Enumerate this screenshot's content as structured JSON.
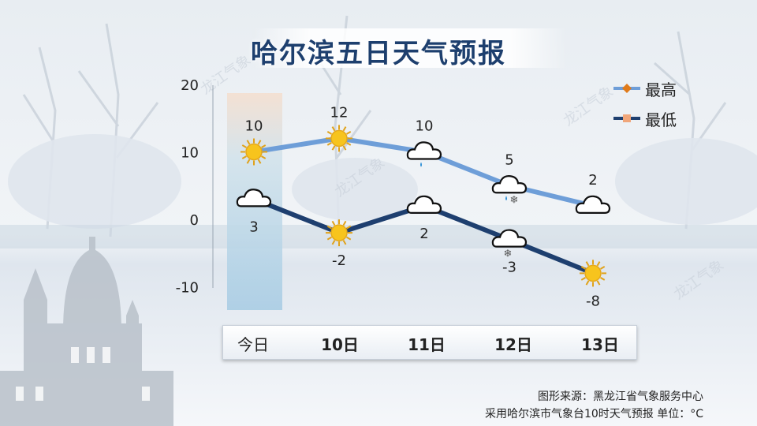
{
  "title": "哈尔滨五日天气预报",
  "chart_data": {
    "type": "line",
    "categories": [
      "今日",
      "10日",
      "11日",
      "12日",
      "13日"
    ],
    "yticks": [
      20,
      10,
      0,
      -10
    ],
    "ylim": [
      -10,
      20
    ],
    "series": [
      {
        "name": "最高",
        "values": [
          10,
          12,
          10,
          5,
          2
        ],
        "color": "#6e9ed8"
      },
      {
        "name": "最低",
        "values": [
          3,
          -2,
          2,
          -3,
          -8
        ],
        "color": "#1e3f6f"
      }
    ],
    "weather_icons": {
      "high": [
        "sun-icon",
        "sun-icon",
        "cloud-rain-icon",
        "cloud-rain-snow-icon",
        "cloud-icon"
      ],
      "low": [
        "cloud-icon",
        "sun-icon",
        "cloud-icon",
        "cloud-snow-icon",
        "sun-icon"
      ]
    }
  },
  "footer": {
    "source": "图形来源：黑龙江省气象服务中心",
    "note": "采用哈尔滨市气象台10时天气预报 单位：°C"
  }
}
